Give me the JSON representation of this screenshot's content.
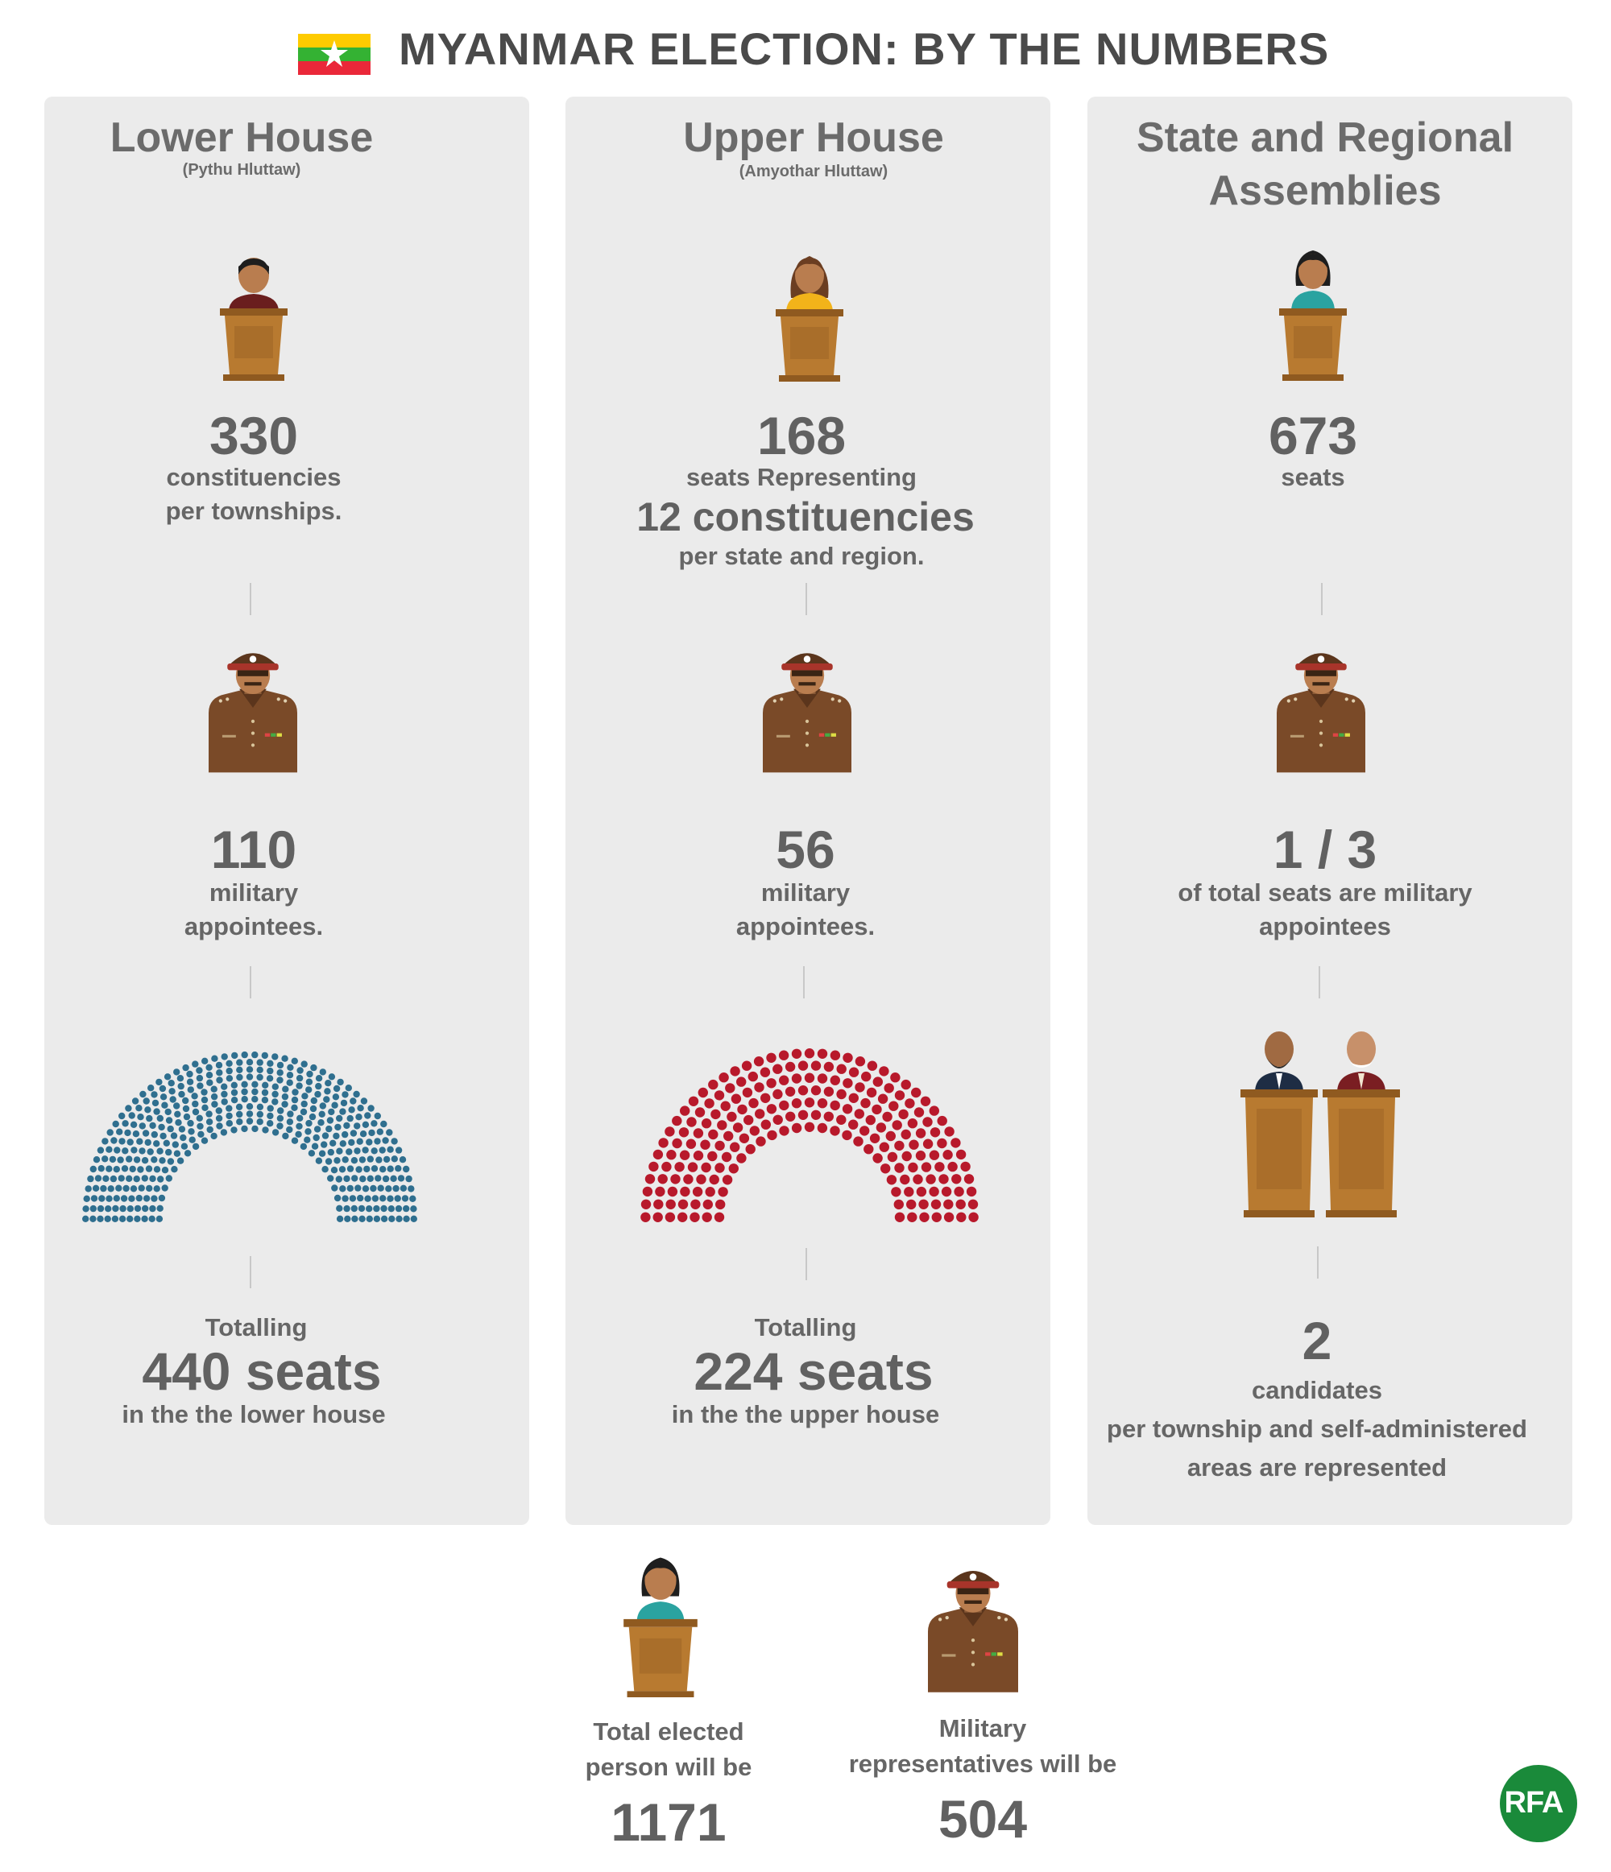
{
  "header": {
    "title": "MYANMAR ELECTION: BY THE NUMBERS",
    "flag_icon": "myanmar-flag-icon"
  },
  "colors": {
    "lower_seats": "#2f6f8f",
    "upper_seats": "#b8192b",
    "panel_bg": "#ebebeb",
    "podium": "#b87a30",
    "military_uniform": "#7a4a28",
    "rfa_logo": "#1a8a3a"
  },
  "lower_house": {
    "title": "Lower House",
    "subtitle": "(Pythu Hluttaw)",
    "stat1_number": "330",
    "stat1_line1": "constituencies",
    "stat1_line2": "per townships.",
    "military_number": "110",
    "military_line1": "military",
    "military_line2": "appointees.",
    "totalling_label": "Totalling",
    "total": "440 seats",
    "total_caption": "in the the lower house",
    "seat_count": 440
  },
  "upper_house": {
    "title": "Upper House",
    "subtitle": "(Amyothar Hluttaw)",
    "stat1_number": "168",
    "stat1_line1": "seats Representing",
    "stat1_line2": "12 constituencies",
    "stat1_line3": "per state and region.",
    "military_number": "56",
    "military_line1": "military",
    "military_line2": "appointees.",
    "totalling_label": "Totalling",
    "total": "224 seats",
    "total_caption": "in the the upper house",
    "seat_count": 224
  },
  "state_regional": {
    "title_line1": "State and Regional",
    "title_line2": "Assemblies",
    "stat1_number": "673",
    "stat1_line1": "seats",
    "military_fraction": "1 / 3",
    "military_line1": "of total seats are military",
    "military_line2": "appointees",
    "candidates_number": "2",
    "candidates_line1": "candidates",
    "candidates_line2": "per township and self-administered",
    "candidates_line3": "areas are represented"
  },
  "footer": {
    "elected_line1": "Total elected",
    "elected_line2": "person will be",
    "elected_number": "1171",
    "military_line1": "Military",
    "military_line2": "representatives will be",
    "military_number": "504",
    "logo_text": "RFA"
  }
}
